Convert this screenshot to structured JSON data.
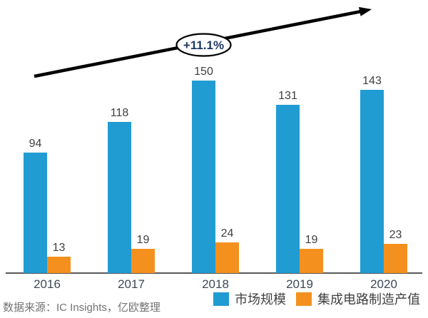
{
  "chart_data": {
    "type": "bar",
    "title": "",
    "categories": [
      "2016",
      "2017",
      "2018",
      "2019",
      "2020"
    ],
    "series": [
      {
        "name": "市场规模",
        "color": "#219cd2",
        "values": [
          94,
          118,
          150,
          131,
          143
        ]
      },
      {
        "name": "集成电路制造产值",
        "color": "#f4911e",
        "values": [
          13,
          19,
          24,
          19,
          23
        ]
      }
    ],
    "annotation": "+11.1%",
    "legend_position": "bottom",
    "grid": false,
    "ylim": [
      0,
      160
    ],
    "axis_color": "#595959",
    "arrow_color": "#000000",
    "annotation_text_color": "#1f3864"
  },
  "source_note": "数据来源：IC Insights，亿欧整理"
}
